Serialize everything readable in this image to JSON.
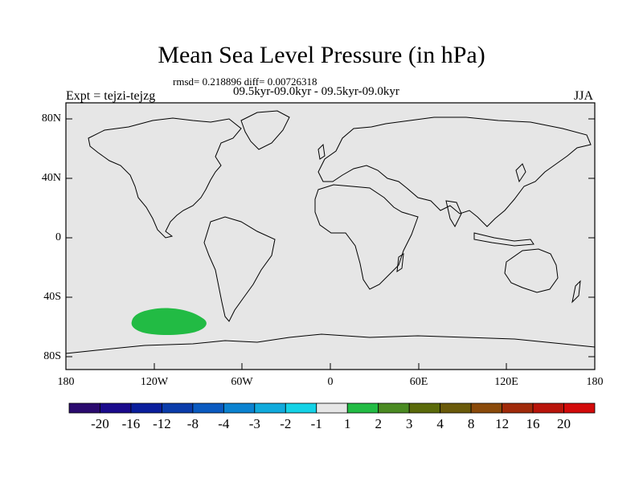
{
  "header": {
    "title": "Mean Sea Level Pressure (in hPa)",
    "stats": "rmsd= 0.218896 diff= 0.00726318",
    "period": "09.5kyr-09.0kyr - 09.5kyr-09.0kyr",
    "experiment": "Expt = tejzi-tejzg",
    "season": "JJA"
  },
  "map": {
    "lat_ticks": [
      "80N",
      "40N",
      "0",
      "40S",
      "80S"
    ],
    "lon_ticks": [
      "180",
      "120W",
      "60W",
      "0",
      "60E",
      "120E",
      "180"
    ],
    "ocean_color": "#e6e6e6",
    "anomaly": {
      "region": "South Pacific",
      "category": "1 to 2",
      "color": "#22bb44"
    }
  },
  "colorbar": {
    "labels": [
      "-20",
      "-16",
      "-12",
      "-8",
      "-4",
      "-3",
      "-2",
      "-1",
      "1",
      "2",
      "3",
      "4",
      "8",
      "12",
      "16",
      "20"
    ],
    "colors": [
      "#2a0a6e",
      "#1a0a8c",
      "#0a1e9c",
      "#0a3caa",
      "#0a5ac0",
      "#0a82d0",
      "#10aadc",
      "#14d2e6",
      "#e6e6e6",
      "#22bb44",
      "#4a8a22",
      "#5a6a0a",
      "#6a5a0a",
      "#8a4a0a",
      "#a02a0a",
      "#b8140a",
      "#d20a0a"
    ]
  }
}
